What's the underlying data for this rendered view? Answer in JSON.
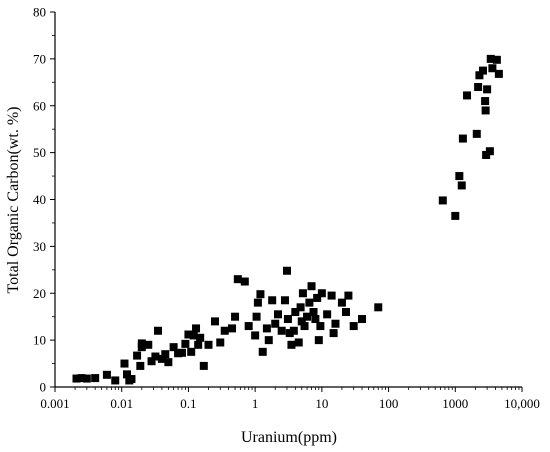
{
  "chart_data": {
    "type": "scatter",
    "xlabel": "Uranium(ppm)",
    "ylabel": "Total Organic Carbon(wt. %)",
    "xscale": "log",
    "xlim": [
      0.001,
      10000
    ],
    "ylim": [
      0,
      80
    ],
    "grid": false,
    "legend": "none",
    "marker": "filled-square",
    "marker_color": "#000000",
    "x_tick_values": [
      0.001,
      0.01,
      0.1,
      1,
      10,
      100,
      1000,
      10000
    ],
    "x_tick_labels": [
      "0.001",
      "0.01",
      "0.1",
      "1",
      "10",
      "100",
      "1000",
      "10,000"
    ],
    "y_tick_values": [
      0,
      10,
      20,
      30,
      40,
      50,
      60,
      70,
      80
    ],
    "y_tick_labels": [
      "0",
      "10",
      "20",
      "30",
      "40",
      "50",
      "60",
      "70",
      "80"
    ],
    "points": [
      [
        0.0021,
        1.8
      ],
      [
        0.0025,
        1.9
      ],
      [
        0.003,
        1.8
      ],
      [
        0.004,
        1.9
      ],
      [
        0.006,
        2.6
      ],
      [
        0.008,
        1.4
      ],
      [
        0.012,
        2.7
      ],
      [
        0.013,
        1.4
      ],
      [
        0.014,
        1.7
      ],
      [
        0.011,
        5.0
      ],
      [
        0.017,
        6.7
      ],
      [
        0.019,
        4.5
      ],
      [
        0.02,
        8.5
      ],
      [
        0.02,
        9.3
      ],
      [
        0.025,
        9.0
      ],
      [
        0.028,
        5.5
      ],
      [
        0.032,
        6.5
      ],
      [
        0.035,
        12.0
      ],
      [
        0.04,
        6.0
      ],
      [
        0.045,
        7.0
      ],
      [
        0.05,
        5.3
      ],
      [
        0.06,
        8.5
      ],
      [
        0.07,
        7.2
      ],
      [
        0.08,
        7.3
      ],
      [
        0.09,
        9.2
      ],
      [
        0.1,
        11.2
      ],
      [
        0.11,
        7.5
      ],
      [
        0.12,
        11.0
      ],
      [
        0.13,
        12.5
      ],
      [
        0.14,
        9.0
      ],
      [
        0.15,
        10.5
      ],
      [
        0.17,
        4.5
      ],
      [
        0.2,
        9.0
      ],
      [
        0.25,
        14.0
      ],
      [
        0.3,
        9.5
      ],
      [
        0.35,
        12.0
      ],
      [
        0.45,
        12.5
      ],
      [
        0.5,
        15.0
      ],
      [
        0.55,
        23.0
      ],
      [
        0.7,
        22.5
      ],
      [
        0.8,
        13.0
      ],
      [
        1.0,
        11.0
      ],
      [
        1.05,
        15.0
      ],
      [
        1.1,
        18.0
      ],
      [
        1.2,
        19.8
      ],
      [
        1.3,
        7.5
      ],
      [
        1.5,
        12.5
      ],
      [
        1.6,
        10.0
      ],
      [
        1.8,
        18.5
      ],
      [
        2.0,
        13.5
      ],
      [
        2.2,
        15.5
      ],
      [
        2.5,
        12.0
      ],
      [
        2.8,
        18.5
      ],
      [
        3.0,
        24.8
      ],
      [
        3.1,
        14.5
      ],
      [
        3.3,
        11.5
      ],
      [
        3.5,
        9.0
      ],
      [
        3.8,
        12.0
      ],
      [
        4.0,
        16.0
      ],
      [
        4.5,
        9.5
      ],
      [
        4.8,
        17.0
      ],
      [
        5.0,
        14.0
      ],
      [
        5.2,
        20.0
      ],
      [
        5.5,
        13.0
      ],
      [
        6.0,
        15.0
      ],
      [
        6.5,
        18.0
      ],
      [
        7.0,
        21.5
      ],
      [
        7.5,
        16.0
      ],
      [
        8.0,
        14.5
      ],
      [
        8.5,
        19.0
      ],
      [
        9.0,
        10.0
      ],
      [
        9.5,
        13.0
      ],
      [
        10.0,
        20.0
      ],
      [
        12.0,
        15.5
      ],
      [
        14.0,
        19.5
      ],
      [
        15.0,
        11.5
      ],
      [
        16.0,
        13.5
      ],
      [
        20.0,
        18.0
      ],
      [
        23.0,
        16.0
      ],
      [
        25.0,
        19.5
      ],
      [
        30.0,
        13.0
      ],
      [
        40.0,
        14.5
      ],
      [
        70.0,
        17.0
      ],
      [
        650,
        39.8
      ],
      [
        1000,
        36.5
      ],
      [
        1150,
        45.0
      ],
      [
        1250,
        43.0
      ],
      [
        1300,
        53.0
      ],
      [
        1500,
        62.2
      ],
      [
        2100,
        54.0
      ],
      [
        2200,
        64.0
      ],
      [
        2300,
        66.5
      ],
      [
        2600,
        67.5
      ],
      [
        2800,
        61.0
      ],
      [
        2850,
        59.0
      ],
      [
        2900,
        49.5
      ],
      [
        3000,
        63.5
      ],
      [
        3300,
        50.3
      ],
      [
        3400,
        70.0
      ],
      [
        3600,
        68.0
      ],
      [
        4200,
        69.8
      ],
      [
        4500,
        66.8
      ]
    ]
  }
}
